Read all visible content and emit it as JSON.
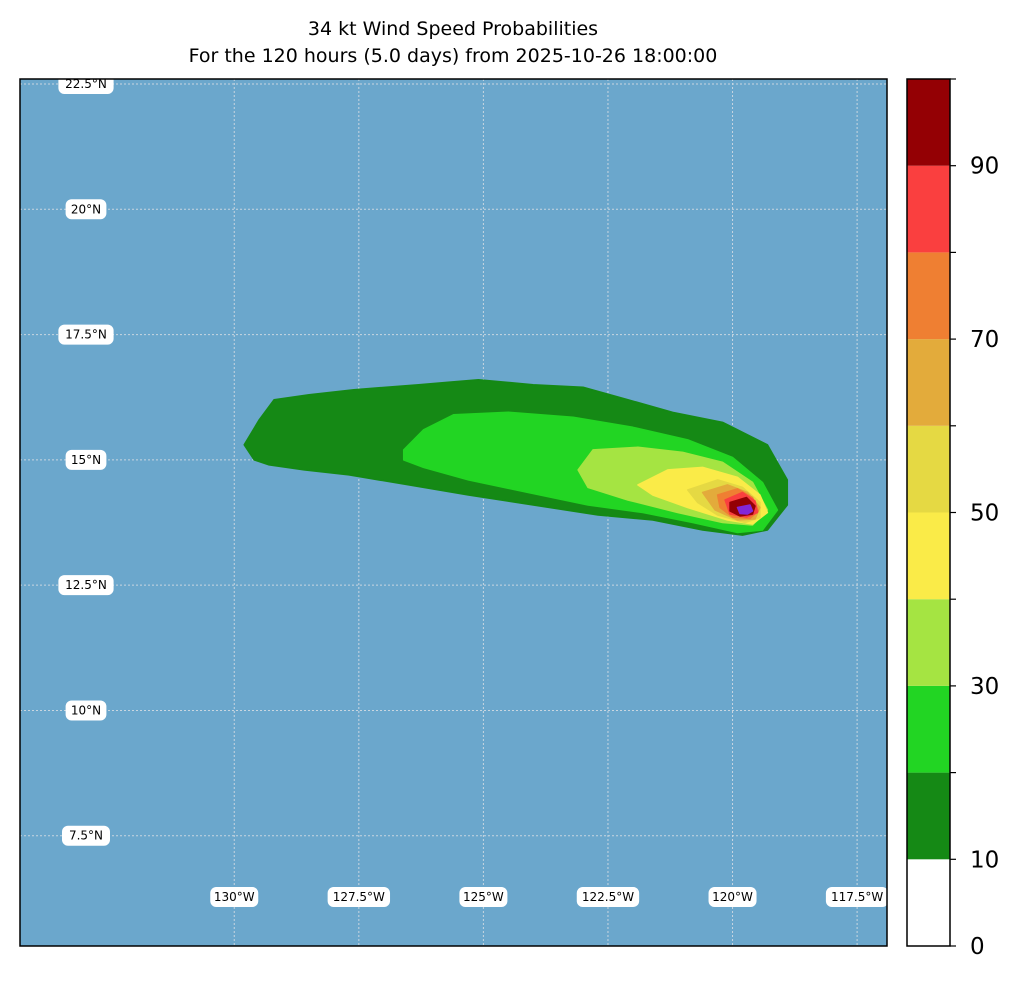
{
  "title": {
    "line1": "34 kt Wind Speed Probabilities",
    "line2": "For the 120 hours (5.0 days) from 2025-10-26 18:00:00"
  },
  "map": {
    "ocean_color": "#6ba7cc",
    "lon_range": [
      -134.3,
      -116.9
    ],
    "lat_range": [
      5.3,
      22.6
    ],
    "lat_labels": [
      {
        "value": 22.5,
        "text": "22.5°N"
      },
      {
        "value": 20,
        "text": "20°N"
      },
      {
        "value": 17.5,
        "text": "17.5°N"
      },
      {
        "value": 15,
        "text": "15°N"
      },
      {
        "value": 12.5,
        "text": "12.5°N"
      },
      {
        "value": 10,
        "text": "10°N"
      },
      {
        "value": 7.5,
        "text": "7.5°N"
      }
    ],
    "lon_labels": [
      {
        "value": -130,
        "text": "130°W"
      },
      {
        "value": -127.5,
        "text": "127.5°W"
      },
      {
        "value": -125,
        "text": "125°W"
      },
      {
        "value": -122.5,
        "text": "122.5°W"
      },
      {
        "value": -120,
        "text": "120°W"
      },
      {
        "value": -117.5,
        "text": "117.5°W"
      }
    ],
    "gridlines": true
  },
  "colorbar": {
    "bounds": [
      0,
      10,
      20,
      30,
      40,
      50,
      60,
      70,
      80,
      90,
      100
    ],
    "colors": [
      "#ffffff",
      "#158915",
      "#22d523",
      "#a5e442",
      "#faeb48",
      "#e5d943",
      "#e3ab3b",
      "#ef7f32",
      "#fa3f3f",
      "#940004",
      "#8227d8"
    ],
    "tick_labels": [
      {
        "value": 0,
        "text": "0"
      },
      {
        "value": 10,
        "text": "10"
      },
      {
        "value": 30,
        "text": "30"
      },
      {
        "value": 50,
        "text": "50"
      },
      {
        "value": 70,
        "text": "70"
      },
      {
        "value": 90,
        "text": "90"
      }
    ]
  },
  "probability_field": {
    "contours": [
      {
        "level": 0,
        "color": "#158915",
        "points": [
          [
            -129.8,
            15.3
          ],
          [
            -129.5,
            15.8
          ],
          [
            -129.2,
            16.2
          ],
          [
            -128.5,
            16.3
          ],
          [
            -127.6,
            16.4
          ],
          [
            -126.3,
            16.5
          ],
          [
            -125.1,
            16.6
          ],
          [
            -124,
            16.5
          ],
          [
            -123,
            16.45
          ],
          [
            -122.1,
            16.2
          ],
          [
            -121.2,
            15.95
          ],
          [
            -120.2,
            15.75
          ],
          [
            -119.3,
            15.3
          ],
          [
            -118.9,
            14.6
          ],
          [
            -118.9,
            14.1
          ],
          [
            -119.3,
            13.6
          ],
          [
            -119.8,
            13.5
          ],
          [
            -120.6,
            13.6
          ],
          [
            -121.6,
            13.8
          ],
          [
            -122.7,
            13.9
          ],
          [
            -124,
            14.1
          ],
          [
            -125.3,
            14.3
          ],
          [
            -126.5,
            14.5
          ],
          [
            -127.7,
            14.7
          ],
          [
            -128.6,
            14.8
          ],
          [
            -129.3,
            14.9
          ],
          [
            -129.6,
            15
          ]
        ]
      },
      {
        "level": 10,
        "color": "#22d523",
        "points": [
          [
            -126.6,
            15.2
          ],
          [
            -126.2,
            15.6
          ],
          [
            -125.6,
            15.9
          ],
          [
            -124.5,
            15.95
          ],
          [
            -123.2,
            15.85
          ],
          [
            -122,
            15.65
          ],
          [
            -120.9,
            15.4
          ],
          [
            -120,
            15.05
          ],
          [
            -119.4,
            14.55
          ],
          [
            -119.1,
            14
          ],
          [
            -119.4,
            13.6
          ],
          [
            -119.9,
            13.55
          ],
          [
            -120.8,
            13.75
          ],
          [
            -121.8,
            13.95
          ],
          [
            -122.9,
            14.1
          ],
          [
            -124.1,
            14.35
          ],
          [
            -125.3,
            14.6
          ],
          [
            -126.2,
            14.85
          ],
          [
            -126.6,
            15
          ]
        ]
      },
      {
        "level": 20,
        "color": "#a5e442",
        "points": [
          [
            -123.1,
            14.8
          ],
          [
            -122.8,
            15.2
          ],
          [
            -121.9,
            15.25
          ],
          [
            -121,
            15.15
          ],
          [
            -120.2,
            14.95
          ],
          [
            -119.6,
            14.55
          ],
          [
            -119.3,
            14
          ],
          [
            -119.6,
            13.7
          ],
          [
            -120.2,
            13.75
          ],
          [
            -121.1,
            13.95
          ],
          [
            -122.1,
            14.2
          ],
          [
            -122.9,
            14.45
          ]
        ]
      },
      {
        "level": 30,
        "color": "#faeb48",
        "points": [
          [
            -121.9,
            14.5
          ],
          [
            -121.3,
            14.8
          ],
          [
            -120.6,
            14.85
          ],
          [
            -119.9,
            14.65
          ],
          [
            -119.45,
            14.3
          ],
          [
            -119.3,
            13.95
          ],
          [
            -119.6,
            13.72
          ],
          [
            -120.1,
            13.8
          ],
          [
            -120.9,
            14.05
          ],
          [
            -121.6,
            14.3
          ]
        ]
      },
      {
        "level": 40,
        "color": "#e5d943",
        "points": [
          [
            -120.9,
            14.4
          ],
          [
            -120.3,
            14.6
          ],
          [
            -119.8,
            14.45
          ],
          [
            -119.45,
            14.15
          ],
          [
            -119.45,
            13.85
          ],
          [
            -119.75,
            13.75
          ],
          [
            -120.3,
            13.9
          ],
          [
            -120.7,
            14.15
          ]
        ]
      },
      {
        "level": 50,
        "color": "#e3ab3b",
        "points": [
          [
            -120.6,
            14.35
          ],
          [
            -120.1,
            14.5
          ],
          [
            -119.7,
            14.35
          ],
          [
            -119.45,
            14.05
          ],
          [
            -119.55,
            13.82
          ],
          [
            -119.9,
            13.8
          ],
          [
            -120.35,
            14
          ]
        ]
      },
      {
        "level": 60,
        "color": "#ef7f32",
        "points": [
          [
            -120.3,
            14.3
          ],
          [
            -119.9,
            14.42
          ],
          [
            -119.6,
            14.25
          ],
          [
            -119.48,
            13.98
          ],
          [
            -119.65,
            13.83
          ],
          [
            -120,
            13.86
          ],
          [
            -120.25,
            14.05
          ]
        ]
      },
      {
        "level": 70,
        "color": "#fa3f3f",
        "points": [
          [
            -120.15,
            14.2
          ],
          [
            -119.8,
            14.35
          ],
          [
            -119.55,
            14.18
          ],
          [
            -119.5,
            13.95
          ],
          [
            -119.72,
            13.86
          ],
          [
            -120.05,
            13.92
          ]
        ]
      },
      {
        "level": 80,
        "color": "#940004",
        "points": [
          [
            -120.05,
            14.15
          ],
          [
            -119.72,
            14.25
          ],
          [
            -119.55,
            14.08
          ],
          [
            -119.6,
            13.92
          ],
          [
            -119.85,
            13.88
          ],
          [
            -120.05,
            13.98
          ]
        ]
      },
      {
        "level": 90,
        "color": "#8227d8",
        "points": [
          [
            -119.9,
            14.05
          ],
          [
            -119.65,
            14.1
          ],
          [
            -119.6,
            13.98
          ],
          [
            -119.7,
            13.92
          ],
          [
            -119.85,
            13.93
          ]
        ]
      }
    ]
  }
}
